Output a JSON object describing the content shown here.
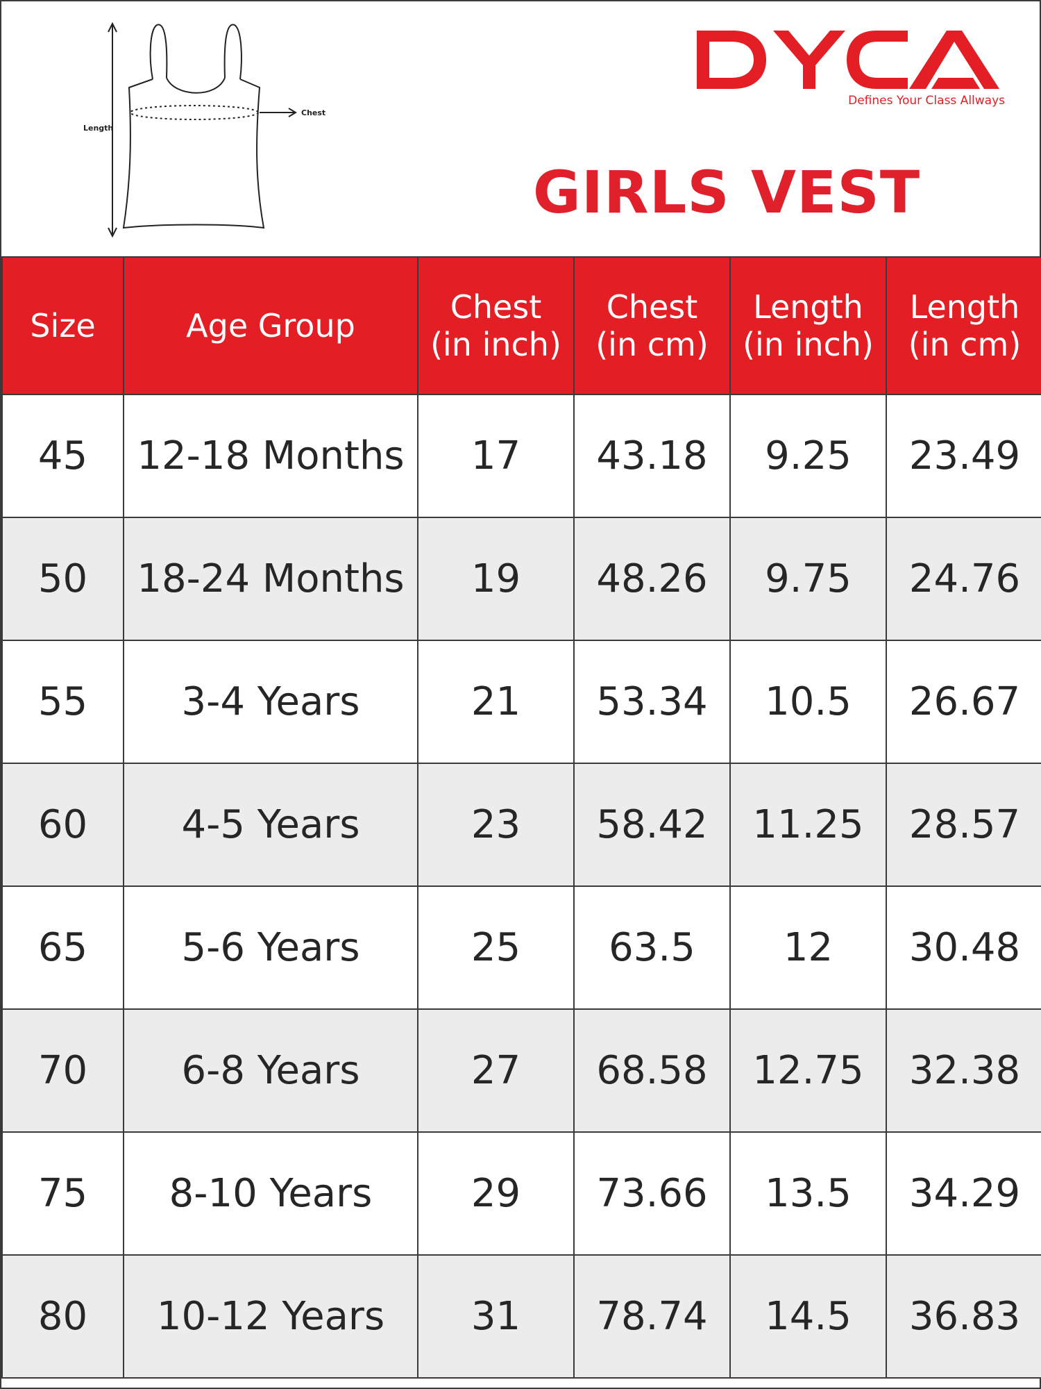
{
  "brand": {
    "name": "DYCA",
    "tagline": "Defines Your Class Allways",
    "color": "#e31e24"
  },
  "title": "GIRLS VEST",
  "diagram": {
    "length_label": "Length",
    "chest_label": "Chest"
  },
  "table": {
    "header_color": "#e31e24",
    "stripe_color": "#ececec",
    "headers": [
      [
        "Size"
      ],
      [
        "Age Group"
      ],
      [
        "Chest",
        "(in inch)"
      ],
      [
        "Chest",
        "(in cm)"
      ],
      [
        "Length",
        "(in inch)"
      ],
      [
        "Length",
        "(in cm)"
      ]
    ],
    "rows": [
      [
        "45",
        "12-18 Months",
        "17",
        "43.18",
        "9.25",
        "23.49"
      ],
      [
        "50",
        "18-24 Months",
        "19",
        "48.26",
        "9.75",
        "24.76"
      ],
      [
        "55",
        "3-4 Years",
        "21",
        "53.34",
        "10.5",
        "26.67"
      ],
      [
        "60",
        "4-5 Years",
        "23",
        "58.42",
        "11.25",
        "28.57"
      ],
      [
        "65",
        "5-6 Years",
        "25",
        "63.5",
        "12",
        "30.48"
      ],
      [
        "70",
        "6-8 Years",
        "27",
        "68.58",
        "12.75",
        "32.38"
      ],
      [
        "75",
        "8-10 Years",
        "29",
        "73.66",
        "13.5",
        "34.29"
      ],
      [
        "80",
        "10-12 Years",
        "31",
        "78.74",
        "14.5",
        "36.83"
      ]
    ]
  }
}
